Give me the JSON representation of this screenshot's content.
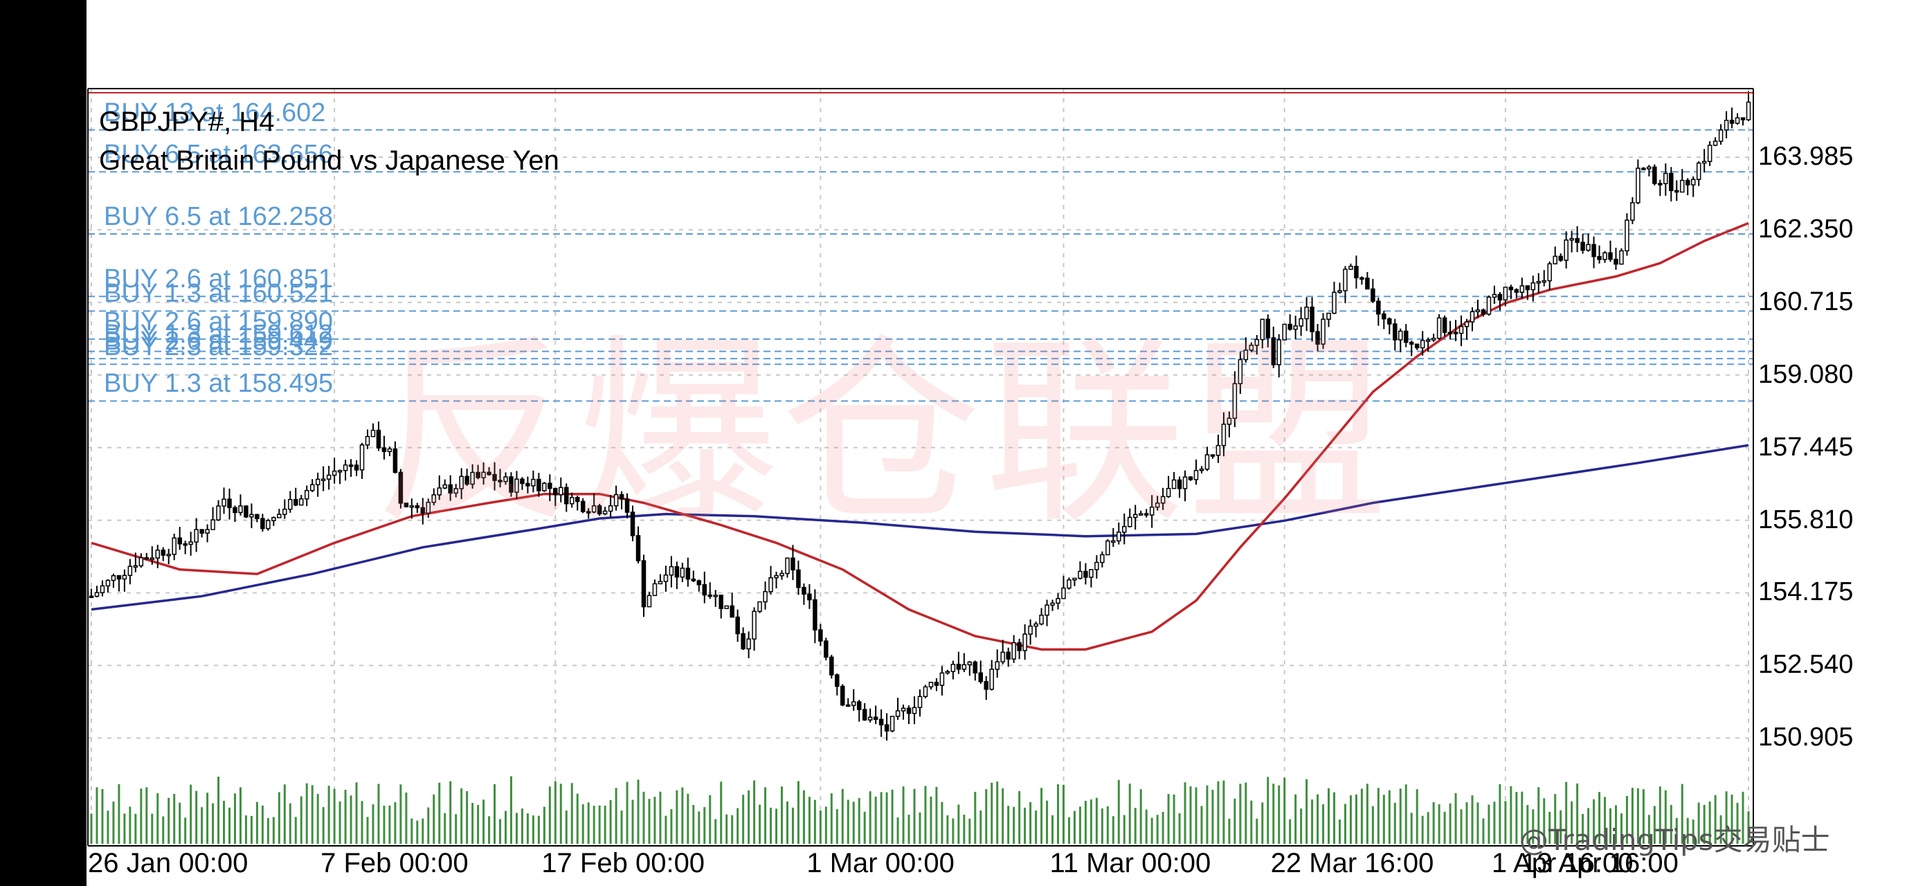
{
  "chart_data": {
    "type": "candlestick",
    "symbol": "GBPJPY#, H4",
    "description": "Great Britain Pound vs Japanese Yen",
    "y_ticks": [
      "163.985",
      "162.350",
      "160.715",
      "159.080",
      "157.445",
      "155.810",
      "154.175",
      "152.540",
      "150.905"
    ],
    "x_ticks": [
      "26 Jan 00:00",
      "7 Feb 00:00",
      "17 Feb 00:00",
      "1 Mar 00:00",
      "11 Mar 00:00",
      "22 Mar 16:00",
      "1 Apr 16:00",
      "13 Apr 16:00"
    ],
    "ylim": [
      150.3,
      165.5
    ],
    "price_path": [
      {
        "t": 0,
        "p": 154.1
      },
      {
        "t": 2,
        "p": 154.5
      },
      {
        "t": 4,
        "p": 154.9
      },
      {
        "t": 6,
        "p": 155.1
      },
      {
        "t": 8,
        "p": 155.3
      },
      {
        "t": 10,
        "p": 155.5
      },
      {
        "t": 12,
        "p": 156.3
      },
      {
        "t": 14,
        "p": 156.0
      },
      {
        "t": 16,
        "p": 155.7
      },
      {
        "t": 18,
        "p": 156.2
      },
      {
        "t": 20,
        "p": 156.6
      },
      {
        "t": 22,
        "p": 156.9
      },
      {
        "t": 24,
        "p": 157.1
      },
      {
        "t": 25,
        "p": 157.8
      },
      {
        "t": 27,
        "p": 157.3
      },
      {
        "t": 28,
        "p": 156.2
      },
      {
        "t": 30,
        "p": 156.1
      },
      {
        "t": 32,
        "p": 156.5
      },
      {
        "t": 34,
        "p": 156.7
      },
      {
        "t": 36,
        "p": 156.8
      },
      {
        "t": 38,
        "p": 156.6
      },
      {
        "t": 40,
        "p": 156.7
      },
      {
        "t": 42,
        "p": 156.5
      },
      {
        "t": 44,
        "p": 156.2
      },
      {
        "t": 46,
        "p": 156.1
      },
      {
        "t": 48,
        "p": 156.3
      },
      {
        "t": 49,
        "p": 155.6
      },
      {
        "t": 50,
        "p": 154.0
      },
      {
        "t": 52,
        "p": 154.6
      },
      {
        "t": 54,
        "p": 154.6
      },
      {
        "t": 56,
        "p": 154.2
      },
      {
        "t": 58,
        "p": 153.7
      },
      {
        "t": 59,
        "p": 153.0
      },
      {
        "t": 61,
        "p": 154.2
      },
      {
        "t": 63,
        "p": 154.8
      },
      {
        "t": 65,
        "p": 153.9
      },
      {
        "t": 66,
        "p": 153.1
      },
      {
        "t": 68,
        "p": 151.8
      },
      {
        "t": 70,
        "p": 151.4
      },
      {
        "t": 72,
        "p": 151.1
      },
      {
        "t": 74,
        "p": 151.6
      },
      {
        "t": 76,
        "p": 152.1
      },
      {
        "t": 78,
        "p": 152.6
      },
      {
        "t": 80,
        "p": 152.4
      },
      {
        "t": 81,
        "p": 152.0
      },
      {
        "t": 82,
        "p": 152.7
      },
      {
        "t": 84,
        "p": 153.0
      },
      {
        "t": 86,
        "p": 153.6
      },
      {
        "t": 88,
        "p": 154.2
      },
      {
        "t": 90,
        "p": 154.6
      },
      {
        "t": 92,
        "p": 155.3
      },
      {
        "t": 94,
        "p": 155.8
      },
      {
        "t": 96,
        "p": 156.1
      },
      {
        "t": 98,
        "p": 156.6
      },
      {
        "t": 100,
        "p": 156.8
      },
      {
        "t": 102,
        "p": 157.5
      },
      {
        "t": 103,
        "p": 158.2
      },
      {
        "t": 104,
        "p": 159.6
      },
      {
        "t": 106,
        "p": 160.2
      },
      {
        "t": 107,
        "p": 159.3
      },
      {
        "t": 108,
        "p": 160.1
      },
      {
        "t": 110,
        "p": 160.5
      },
      {
        "t": 111,
        "p": 159.9
      },
      {
        "t": 113,
        "p": 161.1
      },
      {
        "t": 114,
        "p": 161.6
      },
      {
        "t": 116,
        "p": 160.6
      },
      {
        "t": 118,
        "p": 160.0
      },
      {
        "t": 120,
        "p": 159.7
      },
      {
        "t": 122,
        "p": 160.2
      },
      {
        "t": 124,
        "p": 160.1
      },
      {
        "t": 126,
        "p": 160.6
      },
      {
        "t": 128,
        "p": 161.0
      },
      {
        "t": 130,
        "p": 160.9
      },
      {
        "t": 132,
        "p": 161.5
      },
      {
        "t": 134,
        "p": 162.1
      },
      {
        "t": 136,
        "p": 161.9
      },
      {
        "t": 138,
        "p": 161.7
      },
      {
        "t": 139,
        "p": 162.4
      },
      {
        "t": 140,
        "p": 163.7
      },
      {
        "t": 142,
        "p": 163.5
      },
      {
        "t": 144,
        "p": 163.3
      },
      {
        "t": 146,
        "p": 164.0
      },
      {
        "t": 148,
        "p": 164.7
      },
      {
        "t": 150,
        "p": 165.1
      }
    ],
    "ma_fast": [
      {
        "t": 0,
        "p": 155.3
      },
      {
        "t": 8,
        "p": 154.7
      },
      {
        "t": 15,
        "p": 154.6
      },
      {
        "t": 22,
        "p": 155.3
      },
      {
        "t": 29,
        "p": 155.9
      },
      {
        "t": 36,
        "p": 156.2
      },
      {
        "t": 41,
        "p": 156.4
      },
      {
        "t": 46,
        "p": 156.4
      },
      {
        "t": 50,
        "p": 156.2
      },
      {
        "t": 57,
        "p": 155.7
      },
      {
        "t": 62,
        "p": 155.3
      },
      {
        "t": 68,
        "p": 154.7
      },
      {
        "t": 74,
        "p": 153.8
      },
      {
        "t": 80,
        "p": 153.2
      },
      {
        "t": 86,
        "p": 152.9
      },
      {
        "t": 90,
        "p": 152.9
      },
      {
        "t": 96,
        "p": 153.3
      },
      {
        "t": 100,
        "p": 154.0
      },
      {
        "t": 104,
        "p": 155.2
      },
      {
        "t": 108,
        "p": 156.3
      },
      {
        "t": 112,
        "p": 157.5
      },
      {
        "t": 116,
        "p": 158.7
      },
      {
        "t": 120,
        "p": 159.5
      },
      {
        "t": 124,
        "p": 160.2
      },
      {
        "t": 128,
        "p": 160.7
      },
      {
        "t": 132,
        "p": 161.0
      },
      {
        "t": 138,
        "p": 161.3
      },
      {
        "t": 142,
        "p": 161.6
      },
      {
        "t": 146,
        "p": 162.1
      },
      {
        "t": 150,
        "p": 162.5
      }
    ],
    "ma_slow": [
      {
        "t": 0,
        "p": 153.8
      },
      {
        "t": 10,
        "p": 154.1
      },
      {
        "t": 20,
        "p": 154.6
      },
      {
        "t": 30,
        "p": 155.2
      },
      {
        "t": 40,
        "p": 155.6
      },
      {
        "t": 46,
        "p": 155.85
      },
      {
        "t": 52,
        "p": 155.95
      },
      {
        "t": 60,
        "p": 155.9
      },
      {
        "t": 70,
        "p": 155.75
      },
      {
        "t": 80,
        "p": 155.55
      },
      {
        "t": 90,
        "p": 155.45
      },
      {
        "t": 100,
        "p": 155.5
      },
      {
        "t": 108,
        "p": 155.8
      },
      {
        "t": 116,
        "p": 156.2
      },
      {
        "t": 124,
        "p": 156.5
      },
      {
        "t": 132,
        "p": 156.8
      },
      {
        "t": 140,
        "p": 157.1
      },
      {
        "t": 150,
        "p": 157.5
      }
    ],
    "buy_orders": [
      {
        "label": "BUY 13 at 164.602",
        "price": 164.602
      },
      {
        "label": "BUY 6.5 at 163.656",
        "price": 163.656
      },
      {
        "label": "BUY 6.5 at 162.258",
        "price": 162.258
      },
      {
        "label": "BUY 2.6 at 160.851",
        "price": 160.851
      },
      {
        "label": "BUY 1.3 at 160.521",
        "price": 160.521
      },
      {
        "label": "BUY 2.6 at 159.890",
        "price": 159.89
      },
      {
        "label": "BUY 1.3 at 159.612",
        "price": 159.612
      },
      {
        "label": "BUY 2.6 at 159.449",
        "price": 159.449
      },
      {
        "label": "BUY 2.3 at 159.322",
        "price": 159.322
      },
      {
        "label": "BUY 1.3 at 158.495",
        "price": 158.495
      }
    ],
    "colors": {
      "bull": "#000000",
      "bear": "#000000",
      "ma_fast": "#C0262B",
      "ma_slow": "#27288F",
      "volume": "#3F8F3F",
      "order_line": "#5B9BD5",
      "grid": "#C8C8C8",
      "top_line": "#C0262B"
    }
  },
  "watermark": "反爆仓联盟",
  "credit": "@TradingTips交易贴士"
}
